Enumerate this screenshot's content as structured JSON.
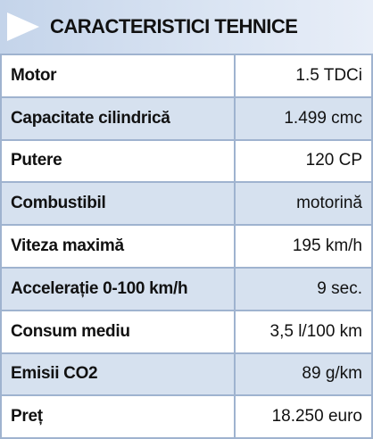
{
  "header": {
    "title": "CARACTERISTICI TEHNICE"
  },
  "table": {
    "rows": [
      [
        "Motor",
        "1.5 TDCi"
      ],
      [
        "Capacitate cilindrică",
        "1.499 cmc"
      ],
      [
        "Putere",
        "120 CP"
      ],
      [
        "Combustibil",
        "motorină"
      ],
      [
        "Viteza maximă",
        "195 km/h"
      ],
      [
        "Accelerație 0-100 km/h",
        "9 sec."
      ],
      [
        "Consum mediu",
        "3,5 l/100 km"
      ],
      [
        "Emisii CO2",
        "89 g/km"
      ],
      [
        "Preț",
        "18.250 euro"
      ]
    ]
  }
}
